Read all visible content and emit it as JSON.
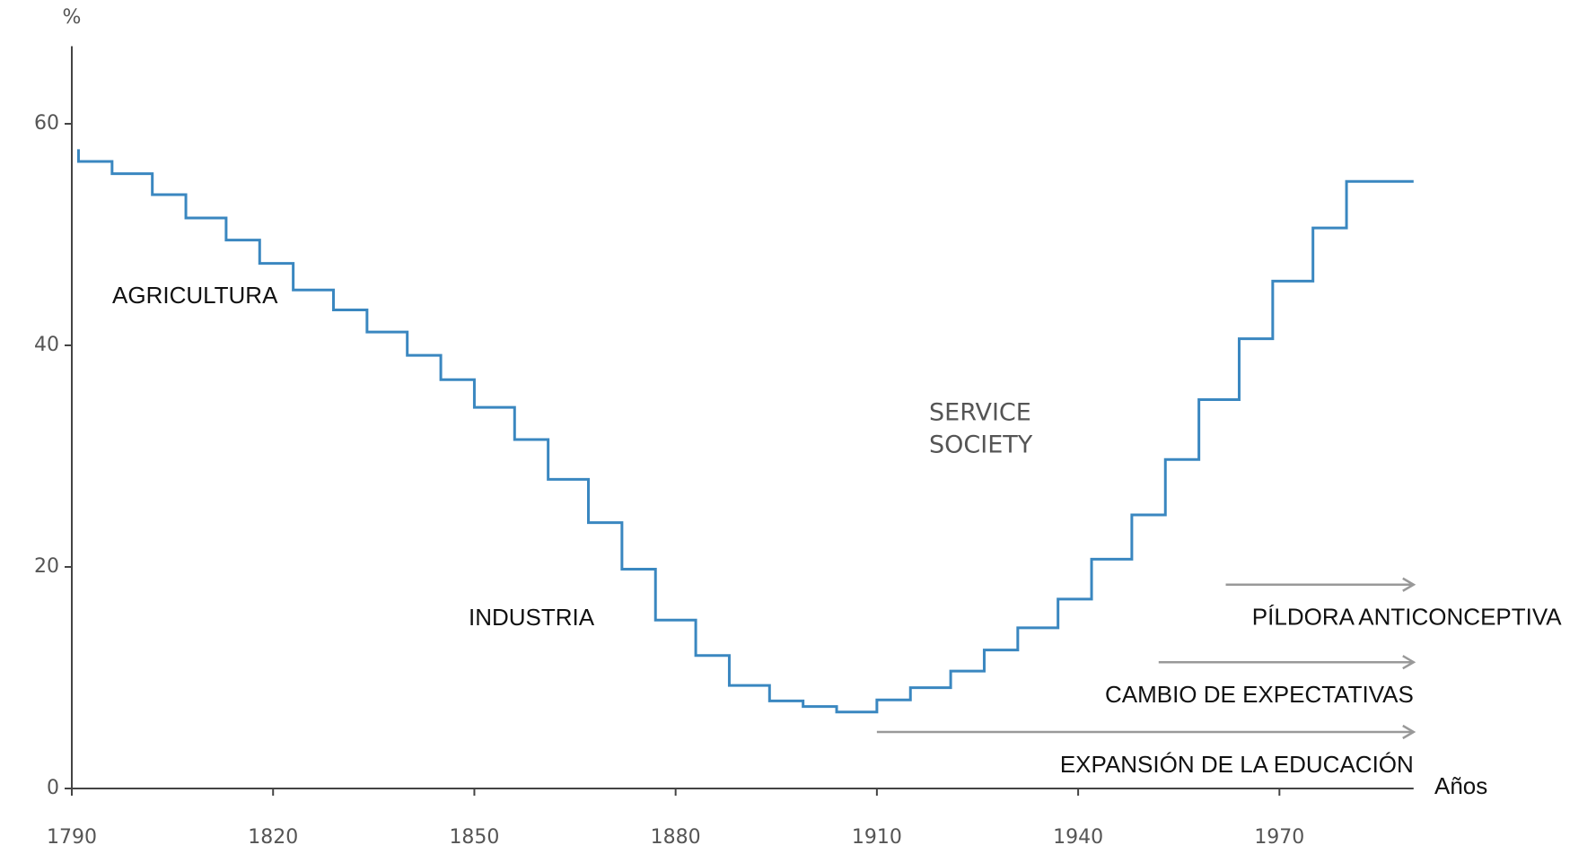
{
  "chart_data": {
    "type": "step",
    "ylabel": "%",
    "xlabel": "Años",
    "x": [
      1791,
      1796,
      1802,
      1807,
      1813,
      1818,
      1823,
      1829,
      1834,
      1840,
      1845,
      1850,
      1856,
      1861,
      1867,
      1872,
      1877,
      1883,
      1888,
      1894,
      1899,
      1904,
      1910,
      1915,
      1921,
      1926,
      1931,
      1937,
      1942,
      1948,
      1953,
      1958,
      1964,
      1969,
      1975,
      1980,
      1985
    ],
    "series": [
      {
        "color": "#3a87c0",
        "values": [
          57.7,
          56.6,
          55.5,
          53.6,
          51.5,
          49.5,
          47.4,
          45.0,
          43.2,
          41.2,
          39.1,
          36.9,
          34.4,
          31.5,
          27.9,
          24.0,
          19.8,
          15.2,
          12.0,
          9.3,
          7.9,
          7.4,
          6.9,
          8.0,
          9.1,
          10.6,
          12.5,
          14.5,
          17.1,
          20.7,
          24.7,
          29.7,
          35.1,
          40.6,
          45.8,
          50.6,
          54.8
        ]
      }
    ],
    "xlim": [
      1790,
      1990
    ],
    "ylim": [
      0,
      67
    ],
    "xticks": [
      1790,
      1820,
      1850,
      1880,
      1910,
      1940,
      1970
    ],
    "yticks": [
      0,
      20,
      40,
      60
    ],
    "labels": [
      "AGRICULTURA",
      "INDUSTRIA",
      "SERVICE",
      "SOCIETY"
    ],
    "arrows": [
      {
        "label": "PÍLDORA ANTICONCEPTIVA",
        "from": 1962,
        "to": 1990,
        "y": 18.4
      },
      {
        "label": "CAMBIO DE EXPECTATIVAS",
        "from": 1952,
        "to": 1990,
        "y": 11.4
      },
      {
        "label": "EXPANSIÓN DE LA EDUCACIÓN",
        "from": 1910,
        "to": 1990,
        "y": 5.1
      }
    ]
  }
}
